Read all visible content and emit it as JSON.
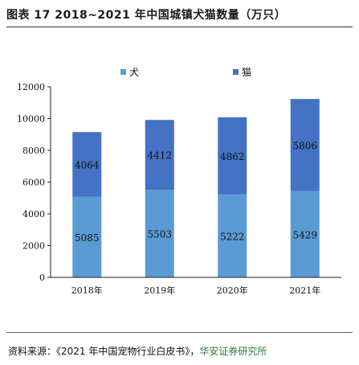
{
  "title": "图表 17 2018~2021 年中国城镇犬猫数量（万只）",
  "source": {
    "prefix": "资料来源：《2021 年中国宠物行业白皮书》，",
    "brand": "华安证券研究所"
  },
  "chart_data": {
    "type": "bar",
    "stacked": true,
    "categories": [
      "2018年",
      "2019年",
      "2020年",
      "2021年"
    ],
    "series": [
      {
        "name": "犬",
        "values": [
          5085,
          5503,
          5222,
          5429
        ],
        "color": "#5b9bd5"
      },
      {
        "name": "猫",
        "values": [
          4064,
          4412,
          4862,
          5806
        ],
        "color": "#4472c4"
      }
    ],
    "ylim": [
      0,
      12000
    ],
    "yticks": [
      0,
      2000,
      4000,
      6000,
      8000,
      10000,
      12000
    ],
    "legend": "top",
    "grid": false,
    "data_labels": true
  }
}
